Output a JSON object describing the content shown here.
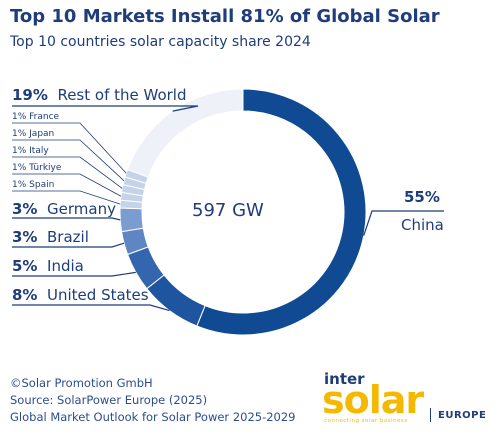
{
  "title": "Top 10 Markets Install 81% of Global Solar",
  "subtitle": "Top 10 countries solar capacity share 2024",
  "center_label": "597 GW",
  "colors": {
    "china": "#0f4a93",
    "us": "#1f55a0",
    "india": "#3466ad",
    "brazil": "#5f86c2",
    "germany": "#7a9cd0",
    "minor": "#c4d3ea",
    "row": "#eef1f7",
    "text": "#1f3d7a"
  },
  "chart_data": {
    "type": "pie",
    "donut": true,
    "title": "Top 10 Markets Install 81% of Global Solar",
    "subtitle": "Top 10 countries solar capacity share 2024",
    "total_label": "597 GW",
    "slices": [
      {
        "name": "China",
        "value": 55,
        "label": "55%"
      },
      {
        "name": "United States",
        "value": 8,
        "label": "8%"
      },
      {
        "name": "India",
        "value": 5,
        "label": "5%"
      },
      {
        "name": "Brazil",
        "value": 3,
        "label": "3%"
      },
      {
        "name": "Germany",
        "value": 3,
        "label": "3%"
      },
      {
        "name": "Spain",
        "value": 1,
        "label": "1%"
      },
      {
        "name": "Türkiye",
        "value": 1,
        "label": "1%"
      },
      {
        "name": "Italy",
        "value": 1,
        "label": "1%"
      },
      {
        "name": "Japan",
        "value": 1,
        "label": "1%"
      },
      {
        "name": "France",
        "value": 1,
        "label": "1%"
      },
      {
        "name": "Rest of the World",
        "value": 19,
        "label": "19%"
      }
    ]
  },
  "footer": {
    "copyright": "©Solar Promotion GmbH",
    "source": "Source: SolarPower Europe (2025)",
    "report": "Global Market Outlook for Solar Power 2025-2029"
  },
  "logo": {
    "inter": "inter",
    "solar": "solar",
    "tagline": "connecting solar business",
    "region": "EUROPE"
  }
}
